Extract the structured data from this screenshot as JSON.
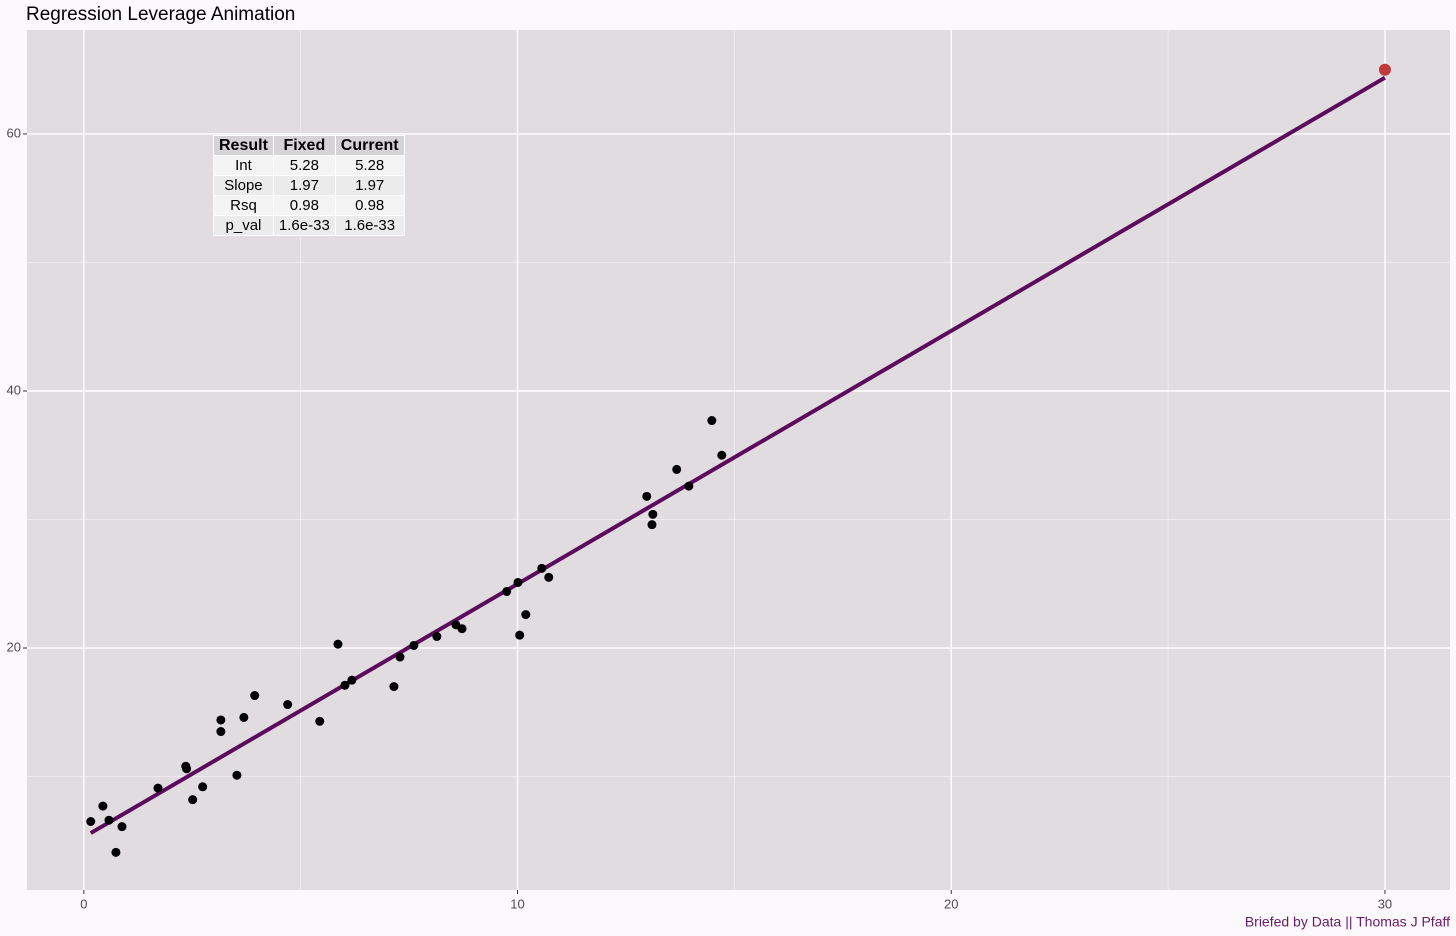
{
  "chart_data": {
    "type": "scatter",
    "title": "Regression Leverage Animation",
    "caption": "Briefed by Data || Thomas J Pfaff",
    "xlim": [
      -1.31,
      31.5
    ],
    "ylim": [
      1.17,
      68.09
    ],
    "xticks": [
      0,
      10,
      20,
      30
    ],
    "yticks": [
      20,
      40,
      60
    ],
    "x_minor_grid": [
      5,
      15,
      25
    ],
    "y_minor_grid": [
      10,
      30,
      50
    ],
    "grid": true,
    "series": [
      {
        "type": "scatter",
        "color": "#000000",
        "x": [
          0.16,
          0.44,
          0.58,
          0.74,
          0.88,
          1.71,
          2.35,
          2.37,
          2.51,
          2.74,
          3.16,
          3.16,
          3.53,
          3.69,
          3.94,
          4.7,
          5.44,
          5.86,
          6.02,
          6.18,
          7.15,
          7.29,
          7.61,
          8.14,
          8.58,
          8.72,
          9.75,
          10.01,
          10.05,
          10.19,
          10.56,
          10.72,
          12.98,
          13.12,
          13.1,
          13.67,
          13.95,
          14.48,
          14.71
        ],
        "y": [
          6.5,
          7.7,
          6.6,
          4.1,
          6.1,
          9.1,
          10.8,
          10.6,
          8.2,
          9.2,
          14.4,
          13.5,
          10.1,
          14.6,
          16.3,
          15.6,
          14.3,
          20.3,
          17.1,
          17.5,
          17.0,
          19.3,
          20.2,
          20.9,
          21.8,
          21.5,
          24.4,
          25.1,
          21.0,
          22.6,
          26.2,
          25.5,
          31.8,
          30.4,
          29.6,
          33.9,
          32.6,
          37.7,
          35.0
        ]
      },
      {
        "type": "line",
        "color": "#5c0a5c",
        "x": [
          0.16,
          30
        ],
        "y": [
          5.6,
          64.38
        ]
      },
      {
        "type": "scatter",
        "color": "#c0393b",
        "x": [
          30
        ],
        "y": [
          65
        ]
      }
    ]
  },
  "table": {
    "header": [
      "Result",
      "Fixed",
      "Current"
    ],
    "rows": [
      [
        "Int",
        "5.28",
        "5.28"
      ],
      [
        "Slope",
        "1.97",
        "1.97"
      ],
      [
        "Rsq",
        "0.98",
        "0.98"
      ],
      [
        "p_val",
        "1.6e-33",
        "1.6e-33"
      ]
    ]
  }
}
